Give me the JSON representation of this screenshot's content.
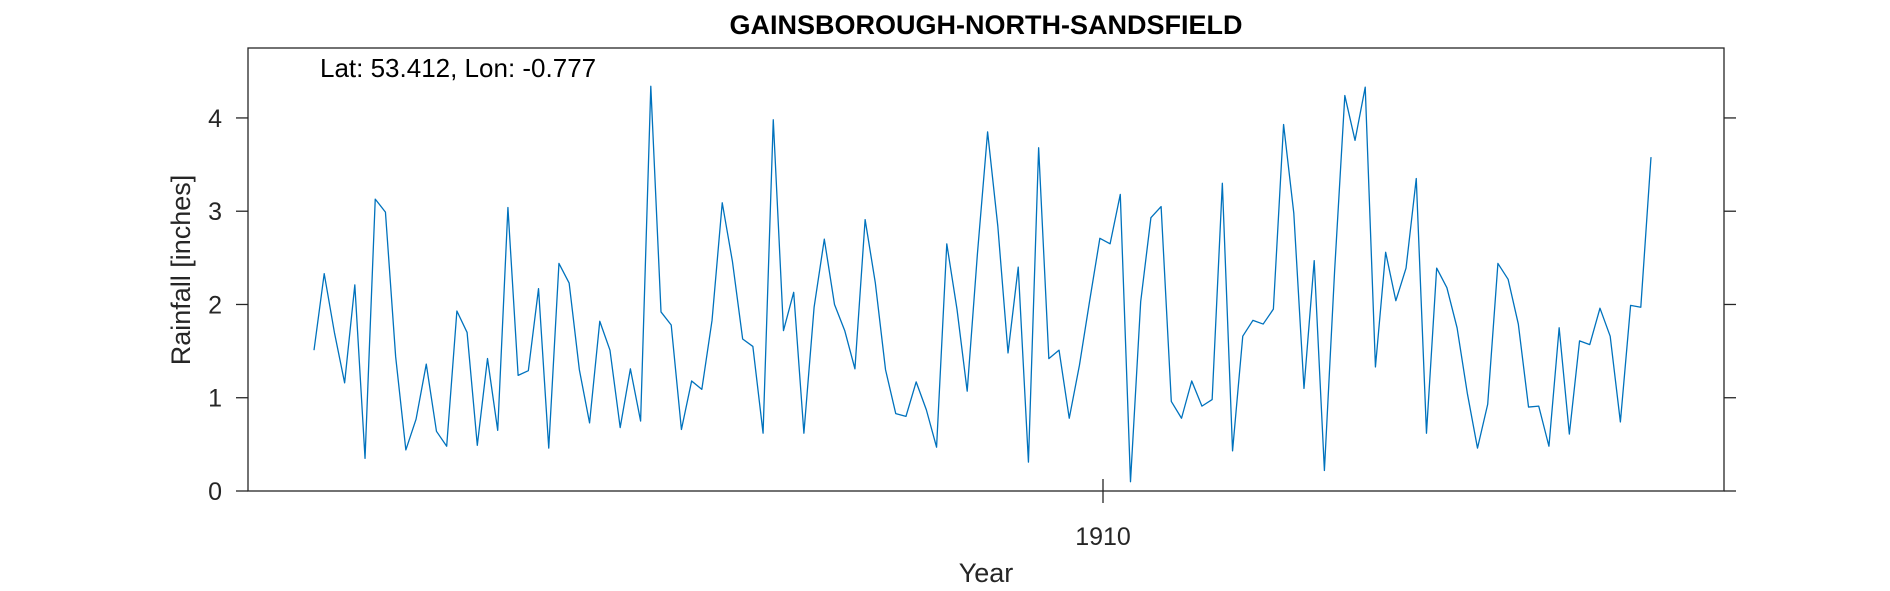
{
  "chart_data": {
    "type": "line",
    "title": "GAINSBOROUGH-NORTH-SANDSFIELD",
    "annotation": "Lat: 53.412, Lon: -0.777",
    "xlabel": "Year",
    "ylabel": "Rainfall [inches]",
    "x_tick_labels": [
      "1910"
    ],
    "y_ticks": [
      0,
      1,
      2,
      3,
      4
    ],
    "y_tick_labels": [
      "0",
      "1",
      "2",
      "3",
      "4"
    ],
    "ylim": [
      0,
      4.75
    ],
    "grid": false,
    "line_color": "#0072BD",
    "series": [
      {
        "values": [
          1.51,
          2.33,
          1.7,
          1.16,
          2.21,
          0.35,
          3.13,
          2.99,
          1.44,
          0.44,
          0.77,
          1.36,
          0.64,
          0.48,
          1.93,
          1.7,
          0.49,
          1.42,
          0.65,
          3.04,
          1.24,
          1.29,
          2.17,
          0.46,
          2.44,
          2.23,
          1.3,
          0.73,
          1.82,
          1.51,
          0.68,
          1.31,
          0.75,
          4.34,
          1.92,
          1.78,
          0.66,
          1.18,
          1.09,
          1.83,
          3.09,
          2.46,
          1.63,
          1.55,
          0.62,
          3.98,
          1.72,
          2.13,
          0.62,
          1.97,
          2.7,
          2.0,
          1.72,
          1.31,
          2.91,
          2.23,
          1.3,
          0.83,
          0.8,
          1.17,
          0.87,
          0.47,
          2.65,
          1.95,
          1.07,
          2.54,
          3.85,
          2.84,
          1.48,
          2.4,
          0.31,
          3.68,
          1.42,
          1.51,
          0.78,
          1.35,
          2.04,
          2.71,
          2.65,
          3.18,
          0.1,
          2.03,
          2.93,
          3.05,
          0.96,
          0.78,
          1.18,
          0.91,
          0.98,
          3.3,
          0.43,
          1.66,
          1.83,
          1.79,
          1.95,
          3.93,
          2.98,
          1.1,
          2.47,
          0.22,
          2.36,
          4.24,
          3.76,
          4.33,
          1.33,
          2.56,
          2.04,
          2.39,
          3.35,
          0.62,
          2.39,
          2.18,
          1.75,
          1.05,
          0.46,
          0.93,
          2.44,
          2.27,
          1.79,
          0.9,
          0.91,
          0.48,
          1.75,
          0.61,
          1.61,
          1.57,
          1.96,
          1.66,
          0.74,
          1.99,
          1.97,
          3.58
        ]
      }
    ]
  }
}
